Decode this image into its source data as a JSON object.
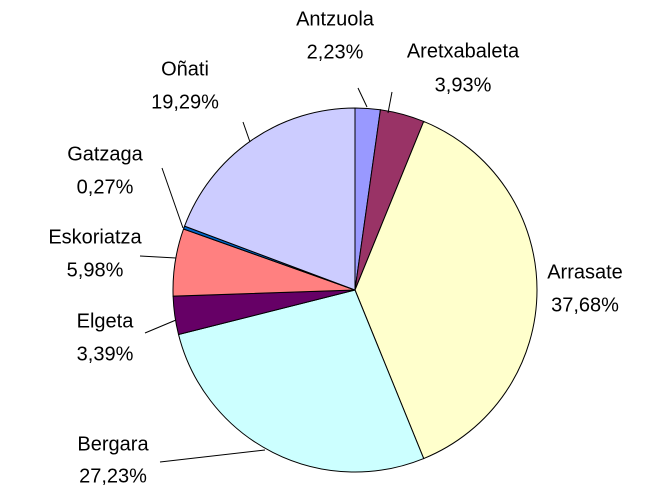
{
  "chart_data": {
    "type": "pie",
    "categories": [
      "Antzuola",
      "Aretxabaleta",
      "Arrasate",
      "Bergara",
      "Elgeta",
      "Eskoriatza",
      "Gatzaga",
      "Oñati"
    ],
    "values": [
      2.23,
      3.93,
      37.68,
      27.23,
      3.39,
      5.98,
      0.27,
      19.29
    ],
    "value_labels": [
      "2,23%",
      "3,93%",
      "37,68%",
      "27,23%",
      "3,39%",
      "5,98%",
      "0,27%",
      "19,29%"
    ],
    "colors": [
      "#9999ff",
      "#993366",
      "#ffffcc",
      "#ccffff",
      "#660066",
      "#ff8080",
      "#0066cc",
      "#ccccff"
    ]
  }
}
